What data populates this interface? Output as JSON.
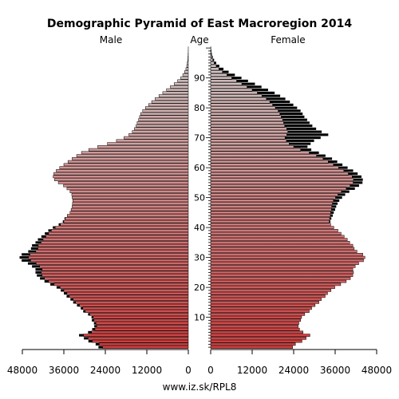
{
  "chart_data": {
    "type": "bar",
    "orientation": "horizontal-pyramid",
    "title": "Demographic Pyramid of East Macroregion 2014",
    "left_label": "Male",
    "center_label": "Age",
    "right_label": "Female",
    "source": "www.iz.sk/RPL8",
    "x_ticks_male": [
      "48000",
      "36000",
      "24000",
      "12000",
      "0"
    ],
    "x_ticks_female": [
      "0",
      "12000",
      "24000",
      "36000",
      "48000"
    ],
    "xlim": [
      0,
      48000
    ],
    "age_ticks": [
      "10",
      "20",
      "30",
      "40",
      "50",
      "60",
      "70",
      "80",
      "90"
    ],
    "ages": [
      0,
      1,
      2,
      3,
      4,
      5,
      6,
      7,
      8,
      9,
      10,
      11,
      12,
      13,
      14,
      15,
      16,
      17,
      18,
      19,
      20,
      21,
      22,
      23,
      24,
      25,
      26,
      27,
      28,
      29,
      30,
      31,
      32,
      33,
      34,
      35,
      36,
      37,
      38,
      39,
      40,
      41,
      42,
      43,
      44,
      45,
      46,
      47,
      48,
      49,
      50,
      51,
      52,
      53,
      54,
      55,
      56,
      57,
      58,
      59,
      60,
      61,
      62,
      63,
      64,
      65,
      66,
      67,
      68,
      69,
      70,
      71,
      72,
      73,
      74,
      75,
      76,
      77,
      78,
      79,
      80,
      81,
      82,
      83,
      84,
      85,
      86,
      87,
      88,
      89,
      90,
      91,
      92,
      93,
      94,
      95,
      96,
      97,
      98,
      99,
      100
    ],
    "series": [
      {
        "name": "Male",
        "values": [
          24800,
          25800,
          27800,
          29000,
          30300,
          28000,
          27000,
          26500,
          26700,
          27300,
          27500,
          28500,
          29800,
          30500,
          31500,
          32600,
          33300,
          34400,
          35100,
          36000,
          37100,
          38800,
          40400,
          41600,
          42300,
          42500,
          42300,
          43000,
          44000,
          45600,
          46200,
          45800,
          44100,
          43500,
          43400,
          42600,
          42000,
          41200,
          40400,
          39600,
          38500,
          37000,
          36000,
          35600,
          35000,
          34200,
          33900,
          33600,
          33500,
          33400,
          33600,
          33700,
          34200,
          35100,
          36100,
          37600,
          38700,
          39100,
          38900,
          38200,
          37200,
          36000,
          34800,
          33600,
          32300,
          30900,
          28800,
          26200,
          23400,
          20800,
          18600,
          17200,
          16200,
          15600,
          15100,
          14800,
          14400,
          14100,
          13800,
          13200,
          12400,
          11500,
          10600,
          9600,
          8500,
          7400,
          6300,
          5200,
          4100,
          3100,
          2200,
          1600,
          1100,
          700,
          450,
          300,
          180,
          100,
          60,
          30,
          15
        ],
        "excess": [
          1200,
          1000,
          1100,
          1200,
          1300,
          1000,
          800,
          700,
          600,
          600,
          500,
          500,
          600,
          600,
          700,
          700,
          800,
          800,
          900,
          900,
          1000,
          1100,
          1200,
          1300,
          1500,
          1700,
          1900,
          2200,
          2400,
          2600,
          2600,
          2400,
          2200,
          2000,
          1800,
          1600,
          1500,
          1300,
          1100,
          900,
          700,
          500,
          300,
          200,
          0,
          0,
          0,
          0,
          0,
          0,
          0,
          0,
          0,
          0,
          0,
          0,
          0,
          0,
          0,
          0,
          0,
          0,
          0,
          0,
          0,
          0,
          0,
          0,
          0,
          0,
          0,
          0,
          0,
          0,
          0,
          0,
          0,
          0,
          0,
          0,
          0,
          0,
          0,
          0,
          0,
          0,
          0,
          0,
          0,
          0,
          0,
          0,
          0,
          0,
          0,
          0,
          0,
          0,
          0,
          0,
          0
        ]
      },
      {
        "name": "Female",
        "values": [
          23700,
          24500,
          26400,
          27600,
          28700,
          26700,
          25700,
          25300,
          25500,
          26000,
          26300,
          27200,
          28500,
          29200,
          30200,
          31300,
          32000,
          33100,
          33800,
          34800,
          35900,
          37600,
          39200,
          40400,
          41100,
          41300,
          41100,
          41800,
          42800,
          44200,
          44600,
          44000,
          42300,
          41500,
          41100,
          40200,
          39500,
          38600,
          37700,
          36800,
          35600,
          34700,
          34300,
          34400,
          34600,
          34700,
          34900,
          35000,
          35200,
          35500,
          36100,
          36800,
          37800,
          39200,
          40300,
          41200,
          41300,
          40900,
          39800,
          38500,
          37000,
          35500,
          34000,
          32500,
          30600,
          28500,
          26000,
          24000,
          22700,
          21900,
          21500,
          22000,
          22300,
          22000,
          21400,
          21100,
          20800,
          20400,
          20000,
          19500,
          18700,
          17900,
          17100,
          16100,
          14800,
          13500,
          12000,
          10500,
          9000,
          7500,
          6100,
          4700,
          3400,
          2400,
          1600,
          1000,
          600,
          350,
          200,
          100,
          50
        ],
        "excess": [
          0,
          0,
          0,
          0,
          0,
          0,
          0,
          0,
          0,
          0,
          0,
          0,
          0,
          0,
          0,
          0,
          0,
          0,
          0,
          0,
          0,
          0,
          0,
          0,
          0,
          0,
          0,
          0,
          0,
          0,
          0,
          0,
          0,
          0,
          0,
          0,
          0,
          0,
          0,
          0,
          0,
          0,
          300,
          500,
          700,
          900,
          1100,
          1300,
          1500,
          1700,
          1900,
          2100,
          2300,
          2500,
          2600,
          2700,
          2700,
          2700,
          2700,
          2700,
          2600,
          2600,
          2600,
          2600,
          2600,
          2800,
          3100,
          4000,
          6200,
          8000,
          10300,
          12000,
          9800,
          8500,
          8000,
          7500,
          7100,
          6700,
          6600,
          6500,
          6300,
          6000,
          5800,
          5500,
          5300,
          5000,
          4600,
          4200,
          3800,
          3300,
          2800,
          2300,
          1800,
          1300,
          900,
          600,
          400,
          250,
          150,
          80,
          40
        ]
      }
    ],
    "legend": "none",
    "grid": false
  }
}
